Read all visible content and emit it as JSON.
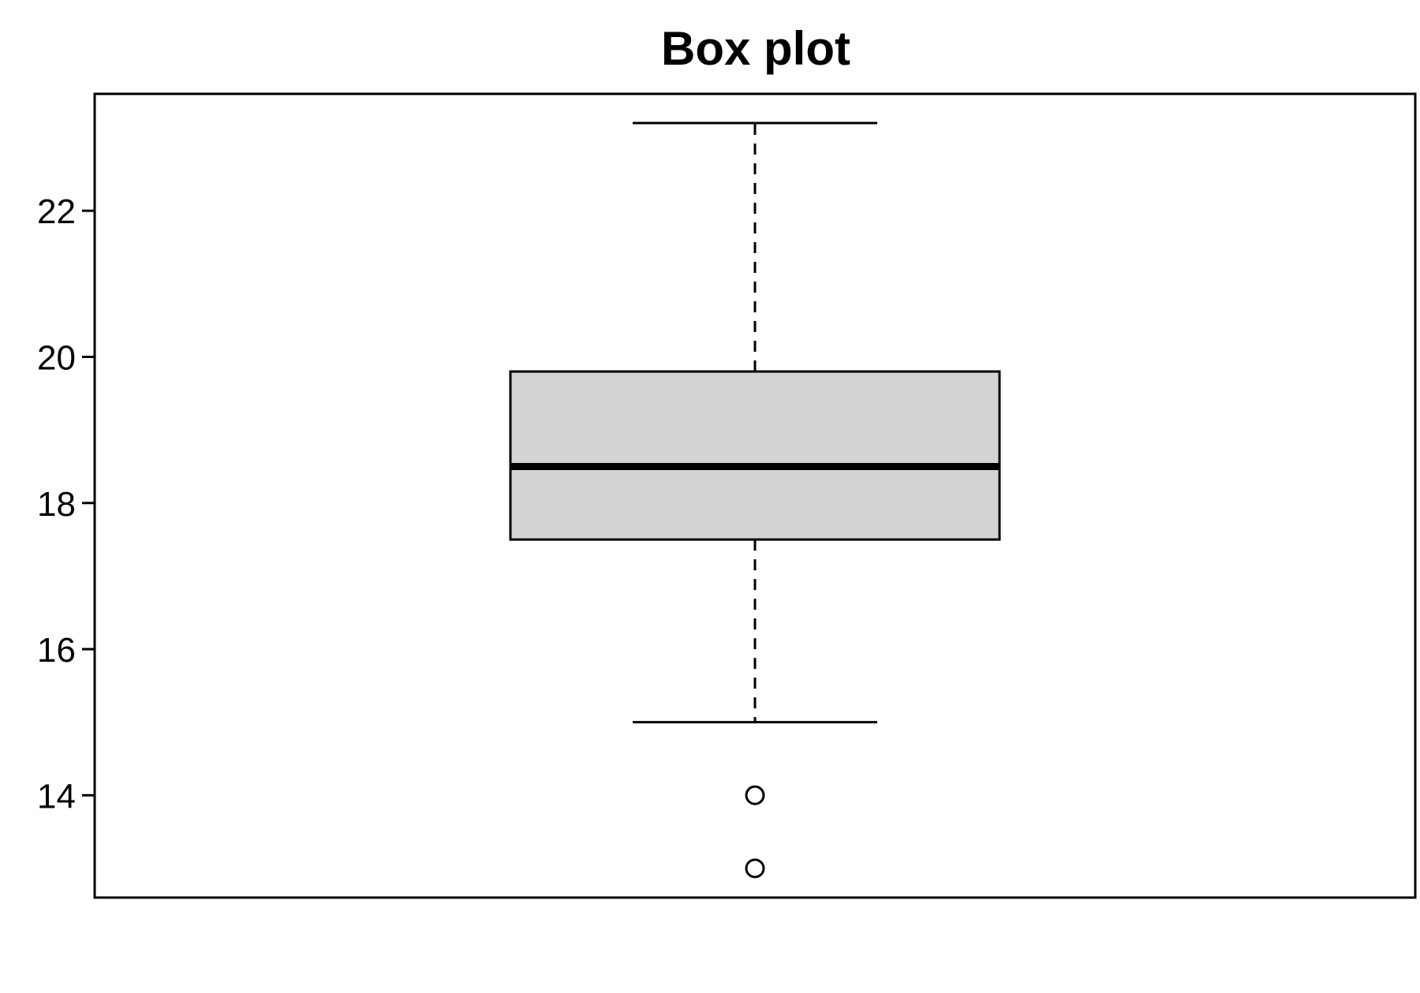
{
  "chart_data": {
    "type": "box",
    "title": "Box plot",
    "xlabel": "",
    "ylabel": "",
    "ylim": [
      12.6,
      23.6
    ],
    "y_ticks": [
      14,
      16,
      18,
      20,
      22
    ],
    "y_tick_labels": [
      "14",
      "16",
      "18",
      "20",
      "22"
    ],
    "grid": false,
    "box": {
      "whisker_low": 15.0,
      "q1": 17.5,
      "median": 18.5,
      "q3": 19.8,
      "whisker_high": 23.2,
      "outliers": [
        14.0,
        13.0
      ]
    },
    "colors": {
      "box_fill": "#d3d3d3",
      "stroke": "#000000",
      "background": "#ffffff"
    }
  }
}
